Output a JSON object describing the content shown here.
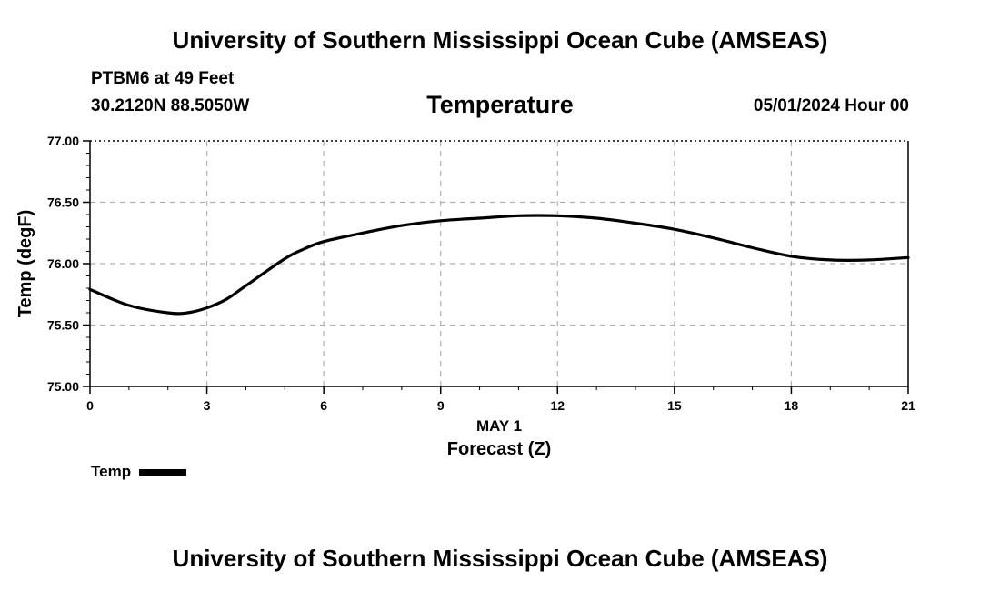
{
  "header": {
    "title": "University of Southern Mississippi Ocean Cube (AMSEAS)",
    "station": "PTBM6 at 49 Feet",
    "coordinates": "30.2120N  88.5050W",
    "subtitle": "Temperature",
    "datetime": "05/01/2024 Hour 00"
  },
  "footer": {
    "title": "University of Southern Mississippi Ocean Cube (AMSEAS)"
  },
  "chart_data": {
    "type": "line",
    "xlabel": "Forecast (Z)",
    "xlabel_date": "MAY 1",
    "ylabel": "Temp (degF)",
    "xlim": [
      0,
      21
    ],
    "ylim": [
      75.0,
      77.0
    ],
    "x_ticks": [
      0,
      3,
      6,
      9,
      12,
      15,
      18,
      21
    ],
    "y_ticks": [
      "75.00",
      "75.50",
      "76.00",
      "76.50",
      "77.00"
    ],
    "grid": true,
    "legend_position": "bottom-left",
    "series": [
      {
        "name": "Temp",
        "color": "#000000",
        "x": [
          0,
          1,
          2,
          2.5,
          3,
          3.5,
          4,
          5,
          5.5,
          6,
          7,
          8,
          9,
          10,
          11,
          12,
          13,
          14,
          15,
          16,
          17,
          18,
          19,
          20,
          21
        ],
        "y": [
          75.79,
          75.66,
          75.6,
          75.6,
          75.64,
          75.71,
          75.82,
          76.04,
          76.12,
          76.18,
          76.25,
          76.31,
          76.35,
          76.37,
          76.39,
          76.39,
          76.37,
          76.33,
          76.28,
          76.21,
          76.13,
          76.06,
          76.03,
          76.03,
          76.05
        ]
      }
    ]
  }
}
